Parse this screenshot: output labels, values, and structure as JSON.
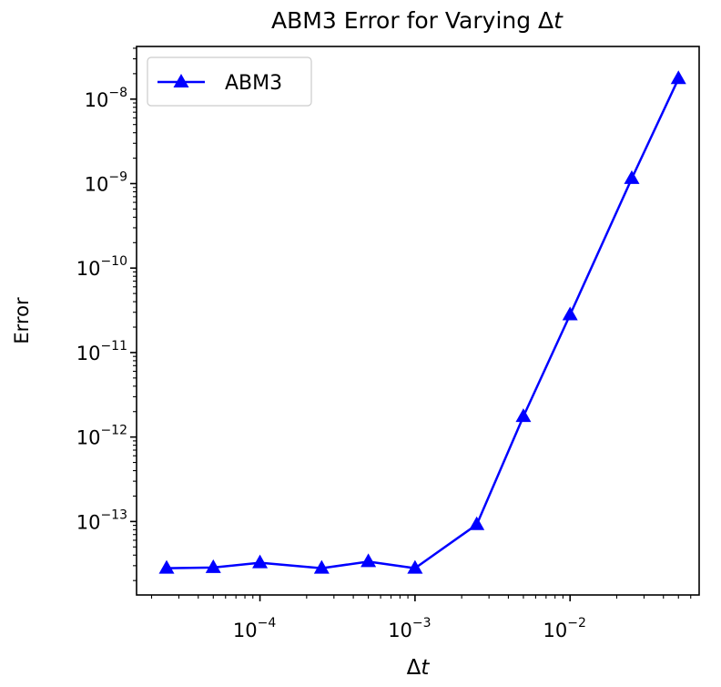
{
  "chart_data": {
    "type": "line",
    "title_text": "ABM3 Error for Varying Δ",
    "title_var": "t",
    "xlabel_text": "Δ",
    "xlabel_var": "t",
    "ylabel": "Error",
    "x_scale": "log",
    "y_scale": "log",
    "xlim": [
      1.6e-05,
      0.068
    ],
    "ylim": [
      1.35e-14,
      4.2e-08
    ],
    "x_ticks": [
      {
        "value": 0.0001,
        "base": "10",
        "exp": "−4"
      },
      {
        "value": 0.001,
        "base": "10",
        "exp": "−3"
      },
      {
        "value": 0.01,
        "base": "10",
        "exp": "−2"
      }
    ],
    "y_ticks": [
      {
        "value": 1e-13,
        "base": "10",
        "exp": "−13"
      },
      {
        "value": 1e-12,
        "base": "10",
        "exp": "−12"
      },
      {
        "value": 1e-11,
        "base": "10",
        "exp": "−11"
      },
      {
        "value": 1e-10,
        "base": "10",
        "exp": "−10"
      },
      {
        "value": 1e-09,
        "base": "10",
        "exp": "−9"
      },
      {
        "value": 1e-08,
        "base": "10",
        "exp": "−8"
      }
    ],
    "grid": false,
    "legend_position": "upper-left",
    "series": [
      {
        "name": "ABM3",
        "color": "#0000ff",
        "marker": "triangle-up",
        "x": [
          2.5e-05,
          5e-05,
          0.0001,
          0.00025,
          0.0005,
          0.001,
          0.0025,
          0.005,
          0.01,
          0.025,
          0.05
        ],
        "y": [
          2.8e-14,
          2.85e-14,
          3.25e-14,
          2.8e-14,
          3.35e-14,
          2.8e-14,
          9.2e-14,
          1.75e-12,
          2.8e-11,
          1.15e-09,
          1.75e-08
        ]
      }
    ]
  }
}
